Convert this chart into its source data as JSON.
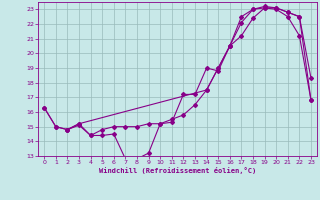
{
  "xlabel": "Windchill (Refroidissement éolien,°C)",
  "bg_color": "#c8e8e8",
  "line_color": "#880088",
  "grid_color": "#99bbbb",
  "xlim": [
    -0.5,
    23.5
  ],
  "ylim": [
    13,
    23.5
  ],
  "yticks": [
    13,
    14,
    15,
    16,
    17,
    18,
    19,
    20,
    21,
    22,
    23
  ],
  "xticks": [
    0,
    1,
    2,
    3,
    4,
    5,
    6,
    7,
    8,
    9,
    10,
    11,
    12,
    13,
    14,
    15,
    16,
    17,
    18,
    19,
    20,
    21,
    22,
    23
  ],
  "curve1_x": [
    0,
    1,
    2,
    3,
    4,
    5,
    6,
    7,
    8,
    9,
    10,
    11,
    12,
    13,
    14,
    15,
    16,
    17,
    18,
    19,
    20,
    21,
    22,
    23
  ],
  "curve1_y": [
    16.3,
    15.0,
    14.8,
    15.1,
    14.4,
    14.4,
    14.5,
    12.8,
    12.8,
    13.2,
    15.2,
    15.3,
    17.2,
    17.2,
    19.0,
    18.8,
    20.5,
    21.2,
    22.4,
    23.1,
    23.1,
    22.8,
    22.5,
    18.3
  ],
  "curve2_x": [
    0,
    1,
    2,
    3,
    4,
    5,
    6,
    7,
    8,
    9,
    10,
    11,
    12,
    13,
    14,
    15,
    16,
    17,
    18,
    19,
    20,
    21,
    22,
    23
  ],
  "curve2_y": [
    16.3,
    15.0,
    14.8,
    15.2,
    14.4,
    14.8,
    15.0,
    15.0,
    15.0,
    15.2,
    15.2,
    15.5,
    15.8,
    16.5,
    17.5,
    19.0,
    20.5,
    22.1,
    23.0,
    23.1,
    23.0,
    22.5,
    21.2,
    16.8
  ],
  "curve3_x": [
    2,
    3,
    14,
    15,
    16,
    17,
    18,
    19,
    20,
    21,
    22,
    23
  ],
  "curve3_y": [
    14.8,
    15.2,
    17.5,
    19.0,
    20.5,
    22.5,
    23.0,
    23.2,
    23.1,
    22.8,
    22.5,
    16.8
  ]
}
